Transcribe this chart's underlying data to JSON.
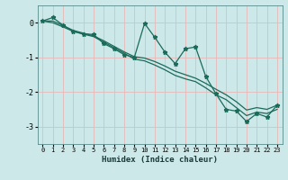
{
  "xlabel": "Humidex (Indice chaleur)",
  "bg_color": "#cce8e8",
  "grid_color": "#e8b8b8",
  "line_color": "#1a6b5a",
  "xlim": [
    -0.5,
    23.5
  ],
  "ylim": [
    -3.5,
    0.5
  ],
  "yticks": [
    0,
    -1,
    -2,
    -3
  ],
  "xticks": [
    0,
    1,
    2,
    3,
    4,
    5,
    6,
    7,
    8,
    9,
    10,
    11,
    12,
    13,
    14,
    15,
    16,
    17,
    18,
    19,
    20,
    21,
    22,
    23
  ],
  "main_x": [
    0,
    1,
    2,
    3,
    4,
    5,
    6,
    7,
    8,
    9,
    10,
    11,
    12,
    13,
    14,
    15,
    16,
    17,
    18,
    19,
    20,
    21,
    22,
    23
  ],
  "main_y": [
    0.05,
    0.15,
    -0.07,
    -0.25,
    -0.32,
    -0.34,
    -0.6,
    -0.75,
    -0.92,
    -1.0,
    -0.02,
    -0.42,
    -0.85,
    -1.18,
    -0.75,
    -0.7,
    -1.55,
    -2.05,
    -2.5,
    -2.55,
    -2.85,
    -2.62,
    -2.72,
    -2.38
  ],
  "line2_x": [
    0,
    1,
    2,
    3,
    4,
    5,
    6,
    7,
    8,
    9,
    10,
    11,
    12,
    13,
    14,
    15,
    16,
    17,
    18,
    19,
    20,
    21,
    22,
    23
  ],
  "line2_y": [
    0.05,
    0.05,
    -0.08,
    -0.22,
    -0.3,
    -0.38,
    -0.52,
    -0.68,
    -0.84,
    -0.98,
    -1.02,
    -1.12,
    -1.25,
    -1.4,
    -1.5,
    -1.6,
    -1.75,
    -1.92,
    -2.08,
    -2.28,
    -2.52,
    -2.45,
    -2.5,
    -2.38
  ],
  "line3_x": [
    0,
    1,
    2,
    3,
    4,
    5,
    6,
    7,
    8,
    9,
    10,
    11,
    12,
    13,
    14,
    15,
    16,
    17,
    18,
    19,
    20,
    21,
    22,
    23
  ],
  "line3_y": [
    0.05,
    0.0,
    -0.12,
    -0.25,
    -0.33,
    -0.4,
    -0.56,
    -0.72,
    -0.88,
    -1.05,
    -1.1,
    -1.22,
    -1.36,
    -1.52,
    -1.62,
    -1.7,
    -1.88,
    -2.08,
    -2.22,
    -2.45,
    -2.68,
    -2.58,
    -2.62,
    -2.5
  ]
}
